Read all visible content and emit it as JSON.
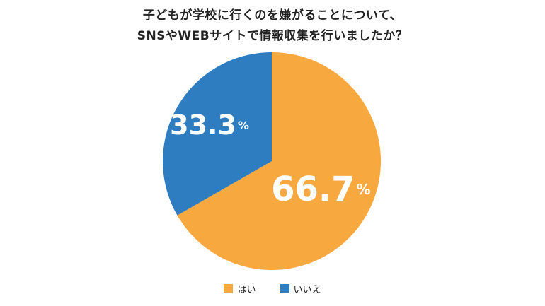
{
  "chart_data": {
    "type": "pie",
    "title_lines": [
      "子どもが学校に行くのを嫌がることについて、",
      "SNSやWEBサイトで情報収集を行いましたか？"
    ],
    "slices": [
      {
        "name": "はい",
        "value": 66.7,
        "label": "66.7",
        "unit": "%",
        "color": "#F7A83E"
      },
      {
        "name": "いいえ",
        "value": 33.3,
        "label": "33.3",
        "unit": "%",
        "color": "#2E7DC1"
      }
    ],
    "legend_placement": "bottom"
  }
}
